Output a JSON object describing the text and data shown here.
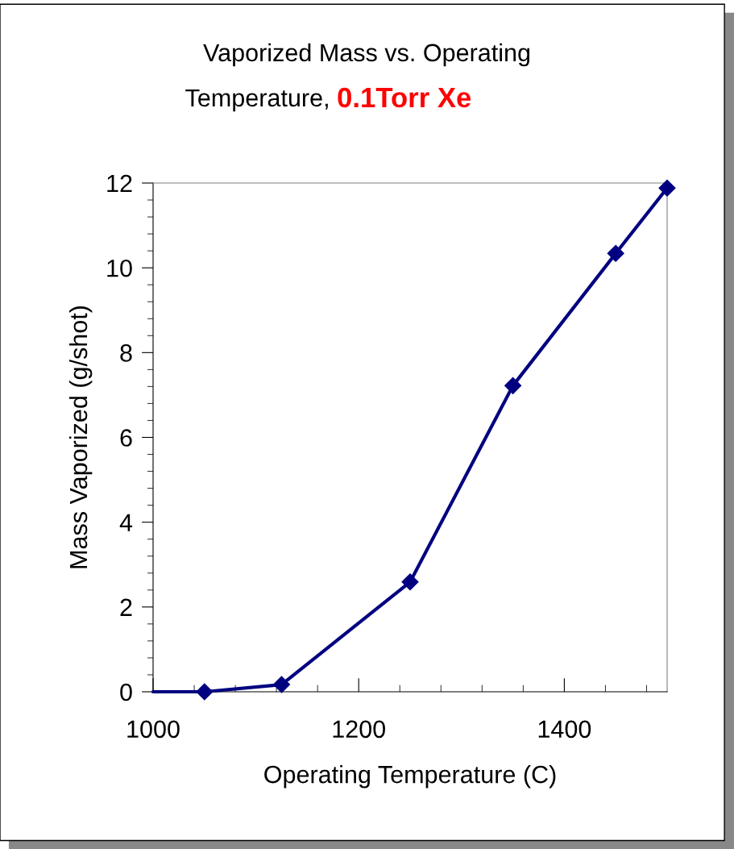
{
  "chart_data": {
    "type": "line",
    "title": "Vaporized Mass vs. Operating Temperature,",
    "subtitle": "0.1Torr Xe",
    "xlabel": "Operating Temperature (C)",
    "ylabel": "Mass Vaporized (g/shot)",
    "series": [
      {
        "color": "#000080",
        "x": [
          1050,
          1125,
          1250,
          1350,
          1450,
          1500
        ],
        "values": [
          0,
          0.17,
          2.59,
          7.22,
          10.34,
          11.88
        ],
        "marker": "diamond"
      },
      {
        "color": "#000080",
        "x": [
          1000,
          1050
        ],
        "values": [
          0,
          0
        ],
        "marker": "none"
      }
    ],
    "xlim": [
      1000,
      1500
    ],
    "xticks": [
      1000,
      1200,
      1400
    ],
    "ylim": [
      0,
      12
    ],
    "yticks": [
      0,
      2,
      4,
      6,
      8,
      10,
      12
    ],
    "grid": false,
    "legend": false,
    "line_style": "solid"
  }
}
